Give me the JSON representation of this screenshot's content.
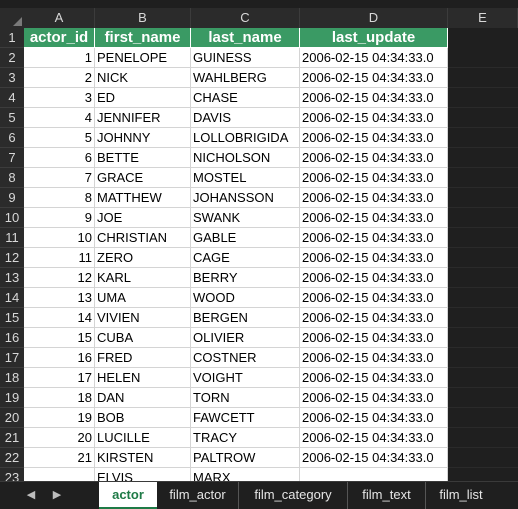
{
  "columns": [
    "A",
    "B",
    "C",
    "D",
    "E"
  ],
  "headers": [
    "actor_id",
    "first_name",
    "last_name",
    "last_update"
  ],
  "rows": [
    [
      "1",
      "PENELOPE",
      "GUINESS",
      "2006-02-15 04:34:33.0"
    ],
    [
      "2",
      "NICK",
      "WAHLBERG",
      "2006-02-15 04:34:33.0"
    ],
    [
      "3",
      "ED",
      "CHASE",
      "2006-02-15 04:34:33.0"
    ],
    [
      "4",
      "JENNIFER",
      "DAVIS",
      "2006-02-15 04:34:33.0"
    ],
    [
      "5",
      "JOHNNY",
      "LOLLOBRIGIDA",
      "2006-02-15 04:34:33.0"
    ],
    [
      "6",
      "BETTE",
      "NICHOLSON",
      "2006-02-15 04:34:33.0"
    ],
    [
      "7",
      "GRACE",
      "MOSTEL",
      "2006-02-15 04:34:33.0"
    ],
    [
      "8",
      "MATTHEW",
      "JOHANSSON",
      "2006-02-15 04:34:33.0"
    ],
    [
      "9",
      "JOE",
      "SWANK",
      "2006-02-15 04:34:33.0"
    ],
    [
      "10",
      "CHRISTIAN",
      "GABLE",
      "2006-02-15 04:34:33.0"
    ],
    [
      "11",
      "ZERO",
      "CAGE",
      "2006-02-15 04:34:33.0"
    ],
    [
      "12",
      "KARL",
      "BERRY",
      "2006-02-15 04:34:33.0"
    ],
    [
      "13",
      "UMA",
      "WOOD",
      "2006-02-15 04:34:33.0"
    ],
    [
      "14",
      "VIVIEN",
      "BERGEN",
      "2006-02-15 04:34:33.0"
    ],
    [
      "15",
      "CUBA",
      "OLIVIER",
      "2006-02-15 04:34:33.0"
    ],
    [
      "16",
      "FRED",
      "COSTNER",
      "2006-02-15 04:34:33.0"
    ],
    [
      "17",
      "HELEN",
      "VOIGHT",
      "2006-02-15 04:34:33.0"
    ],
    [
      "18",
      "DAN",
      "TORN",
      "2006-02-15 04:34:33.0"
    ],
    [
      "19",
      "BOB",
      "FAWCETT",
      "2006-02-15 04:34:33.0"
    ],
    [
      "20",
      "LUCILLE",
      "TRACY",
      "2006-02-15 04:34:33.0"
    ],
    [
      "21",
      "KIRSTEN",
      "PALTROW",
      "2006-02-15 04:34:33.0"
    ],
    [
      "",
      "ELVIS",
      "MARX",
      ""
    ]
  ],
  "row_numbers": [
    "1",
    "2",
    "3",
    "4",
    "5",
    "6",
    "7",
    "8",
    "9",
    "10",
    "11",
    "12",
    "13",
    "14",
    "15",
    "16",
    "17",
    "18",
    "19",
    "20",
    "21",
    "22",
    "23"
  ],
  "nav": {
    "prev_icon": "◀",
    "next_icon": "▶"
  },
  "tabs": [
    "actor",
    "film_actor",
    "film_category",
    "film_text",
    "film_list"
  ],
  "active_tab": "actor",
  "colors": {
    "header_fill": "#3a9a64",
    "active_tab_text": "#1e7a46"
  }
}
